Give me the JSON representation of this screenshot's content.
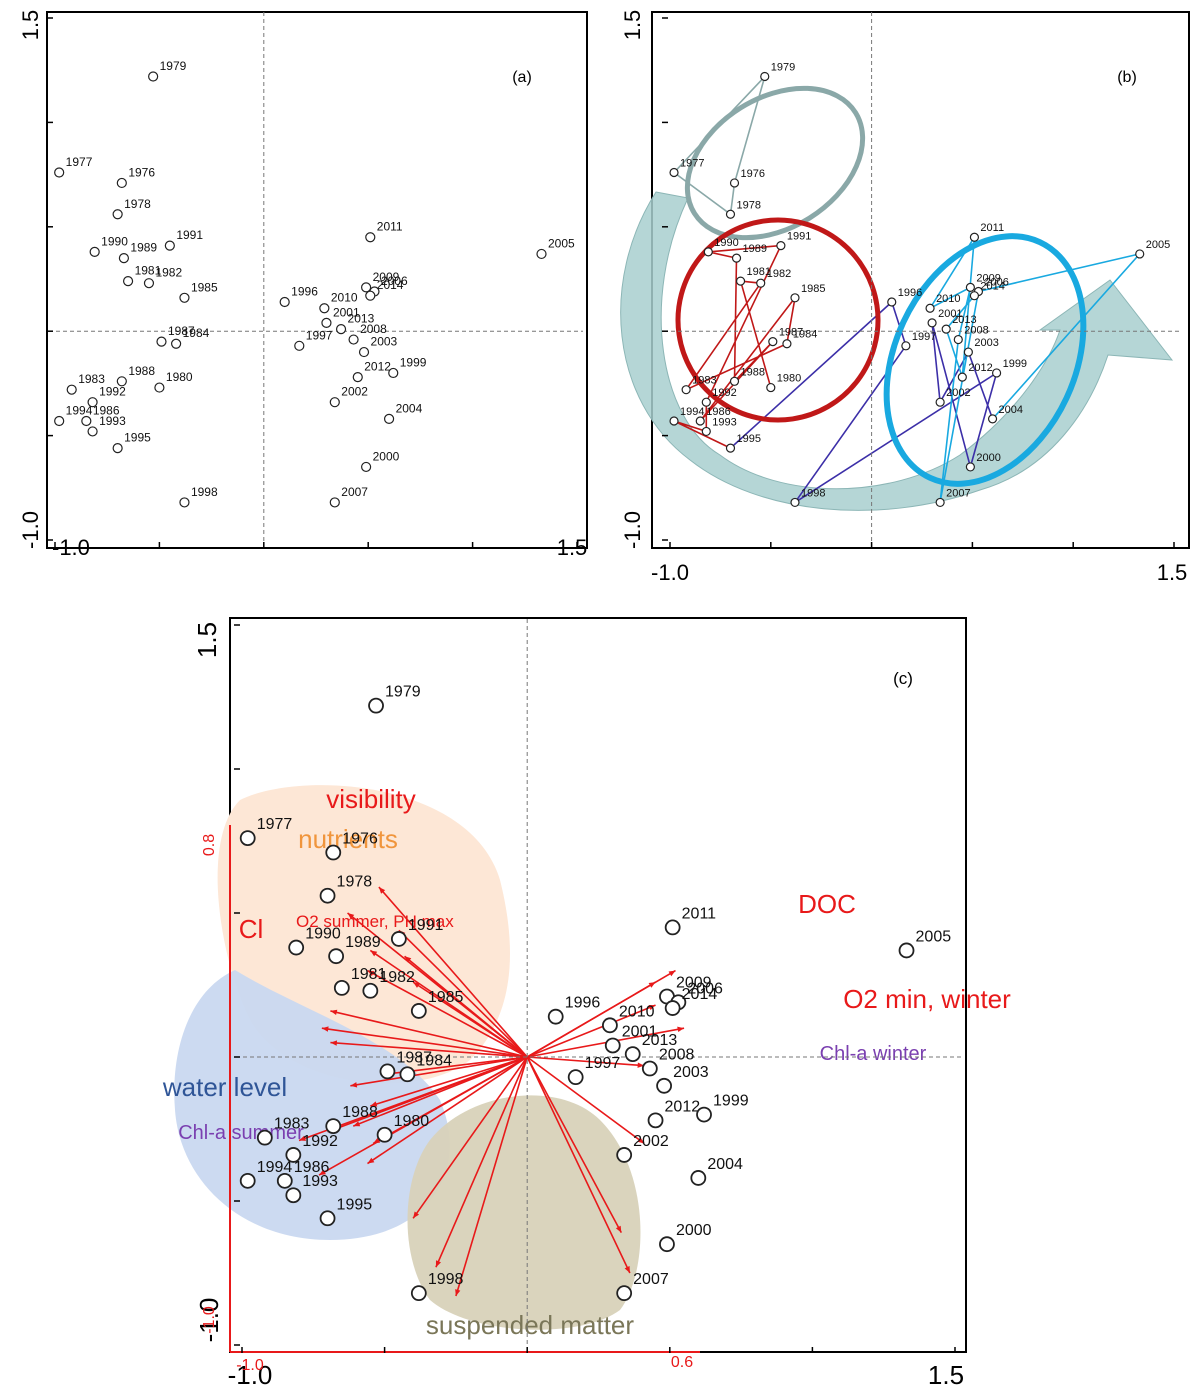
{
  "chart_data": [
    {
      "type": "scatter",
      "panel_label": "(a)",
      "x_ticks": [
        "-1.0",
        "1.5"
      ],
      "y_ticks": [
        "-1.0",
        "1.5"
      ],
      "xlim": [
        -1.0,
        1.5
      ],
      "ylim": [
        -1.0,
        1.5
      ],
      "zero_lines": true,
      "points": [
        {
          "label": "1977",
          "x": -0.98,
          "y": 0.76
        },
        {
          "label": "1979",
          "x": -0.53,
          "y": 1.22
        },
        {
          "label": "1976",
          "x": -0.68,
          "y": 0.71
        },
        {
          "label": "1978",
          "x": -0.7,
          "y": 0.56
        },
        {
          "label": "1990",
          "x": -0.81,
          "y": 0.38
        },
        {
          "label": "1991",
          "x": -0.45,
          "y": 0.41
        },
        {
          "label": "1989",
          "x": -0.67,
          "y": 0.35
        },
        {
          "label": "1982",
          "x": -0.55,
          "y": 0.23
        },
        {
          "label": "1981",
          "x": -0.65,
          "y": 0.24
        },
        {
          "label": "1985",
          "x": -0.38,
          "y": 0.16
        },
        {
          "label": "1996",
          "x": 0.1,
          "y": 0.14
        },
        {
          "label": "1987",
          "x": -0.49,
          "y": -0.05
        },
        {
          "label": "1984",
          "x": -0.42,
          "y": -0.06
        },
        {
          "label": "1983",
          "x": -0.92,
          "y": -0.28
        },
        {
          "label": "1988",
          "x": -0.68,
          "y": -0.24
        },
        {
          "label": "1980",
          "x": -0.5,
          "y": -0.27
        },
        {
          "label": "1994",
          "x": -0.98,
          "y": -0.43
        },
        {
          "label": "1992",
          "x": -0.82,
          "y": -0.34
        },
        {
          "label": "1986",
          "x": -0.85,
          "y": -0.43
        },
        {
          "label": "1993",
          "x": -0.82,
          "y": -0.48
        },
        {
          "label": "1995",
          "x": -0.7,
          "y": -0.56
        },
        {
          "label": "1998",
          "x": -0.38,
          "y": -0.82
        },
        {
          "label": "2011",
          "x": 0.51,
          "y": 0.45
        },
        {
          "label": "2005",
          "x": 1.33,
          "y": 0.37
        },
        {
          "label": "2009",
          "x": 0.49,
          "y": 0.21
        },
        {
          "label": "2006",
          "x": 0.53,
          "y": 0.19
        },
        {
          "label": "2014",
          "x": 0.51,
          "y": 0.17
        },
        {
          "label": "2010",
          "x": 0.29,
          "y": 0.11
        },
        {
          "label": "2001",
          "x": 0.3,
          "y": 0.04
        },
        {
          "label": "2013",
          "x": 0.37,
          "y": 0.01
        },
        {
          "label": "2008",
          "x": 0.43,
          "y": -0.04
        },
        {
          "label": "1997",
          "x": 0.17,
          "y": -0.07
        },
        {
          "label": "2003",
          "x": 0.48,
          "y": -0.1
        },
        {
          "label": "2012",
          "x": 0.45,
          "y": -0.22
        },
        {
          "label": "1999",
          "x": 0.62,
          "y": -0.2
        },
        {
          "label": "2002",
          "x": 0.34,
          "y": -0.34
        },
        {
          "label": "2004",
          "x": 0.6,
          "y": -0.42
        },
        {
          "label": "2000",
          "x": 0.49,
          "y": -0.65
        },
        {
          "label": "2007",
          "x": 0.34,
          "y": -0.82
        }
      ]
    },
    {
      "type": "scatter",
      "panel_label": "(b)",
      "x_ticks": [
        "-1.0",
        "1.5"
      ],
      "y_ticks": [
        "-1.0",
        "1.5"
      ],
      "xlim": [
        -1.0,
        1.5
      ],
      "ylim": [
        -1.0,
        1.5
      ],
      "zero_lines": true,
      "points_same_as": "(a)",
      "group_colors": {
        "early": "#8aa8a8",
        "mid": "#c01818",
        "late_a": "#3c2fa8",
        "late_b": "#19a9e0",
        "arrow": "#a8cfcf"
      }
    },
    {
      "type": "scatter",
      "panel_label": "(c)",
      "x_ticks": [
        "-1.0",
        "1.5"
      ],
      "y_ticks": [
        "-1.0",
        "1.5"
      ],
      "secondary_x_ticks": [
        "-1.0",
        "0.6"
      ],
      "secondary_y_ticks": [
        "0.8",
        "-1.0"
      ],
      "xlim": [
        -1.0,
        1.5
      ],
      "ylim": [
        -1.0,
        1.5
      ],
      "zero_lines": true,
      "points_same_as": "(a)",
      "vectors": {
        "color": "#e8191a",
        "count": 31
      },
      "text_labels": [
        {
          "text": "visibility",
          "color": "#e8191a"
        },
        {
          "text": "nutrients",
          "color": "#f0953c"
        },
        {
          "text": "Cl",
          "color": "#e8191a"
        },
        {
          "text": "O2 summer, PH max",
          "color": "#e8191a"
        },
        {
          "text": "DOC",
          "color": "#e8191a"
        },
        {
          "text": "O2 min, winter",
          "color": "#e8191a"
        },
        {
          "text": "Chl-a winter",
          "color": "#7a3fb0"
        },
        {
          "text": "water level",
          "color": "#2f5597"
        },
        {
          "text": "Chl-a summer",
          "color": "#7a3fb0"
        },
        {
          "text": "suspended matter",
          "color": "#7a7658"
        }
      ],
      "region_colors": {
        "nutrients": "#fde7d6",
        "water_level": "#c9d8f0",
        "suspended_matter": "#d8d2b9"
      }
    }
  ]
}
